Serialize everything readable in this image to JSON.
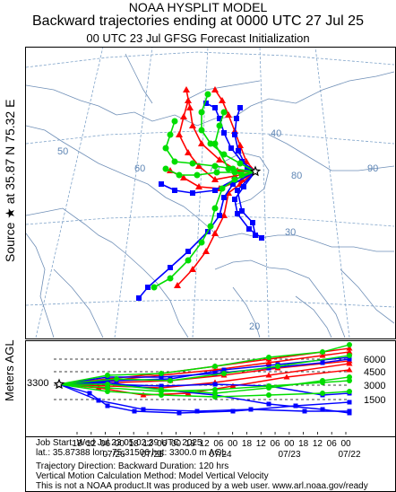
{
  "header": {
    "line1": "NOAA HYSPLIT MODEL",
    "line2": "Backward trajectories ending at 0000 UTC 27 Jul 25",
    "line3": "00 UTC 23 Jul    GFSG  Forecast Initialization"
  },
  "side": {
    "source_label": "Source ★ at   35.87 N   75.32 E",
    "meters_label": "Meters AGL"
  },
  "map": {
    "graticule_labels": [
      "50",
      "60",
      "70",
      "80",
      "90",
      "40",
      "30",
      "20"
    ],
    "source_marker": "star-icon"
  },
  "altitude": {
    "start_height": "3300",
    "y_ticks": [
      "6000",
      "4500",
      "3000",
      "1500"
    ],
    "hour_ticks": [
      "18",
      "12",
      "06",
      "00",
      "18",
      "12",
      "06",
      "00",
      "18",
      "12",
      "06",
      "00",
      "18",
      "12",
      "06",
      "00",
      "18",
      "12",
      "06",
      "00"
    ],
    "date_ticks": [
      "07/26",
      "07/25",
      "07/24",
      "07/23",
      "07/22"
    ]
  },
  "info": {
    "line1": "Job Start: Wed Jul 23 05:02:39 UTC 2025",
    "line2": "lat.: 35.87388   lon.: 75.31506   hgt: 3300.0 m AGL",
    "line3": "Trajectory Direction: Backward        Duration: 120 hrs",
    "line4": "Vertical Motion Calculation Method: Model Vertical Velocity",
    "line5": "This is not a NOAA product.It was produced by a web user. www.arl.noaa.gov/ready"
  },
  "colors": {
    "red": "#ff0000",
    "blue": "#0000ff",
    "green": "#00dd00",
    "border": "#6f8fb7",
    "graticule": "#7fa3c9"
  }
}
